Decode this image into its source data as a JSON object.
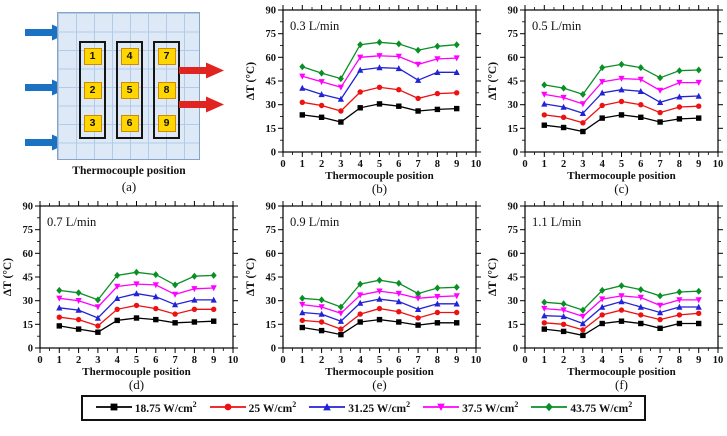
{
  "panel_a": {
    "label": "(a)",
    "caption": "Thermocouple position",
    "columns": [
      [
        "1",
        "2",
        "3"
      ],
      [
        "4",
        "5",
        "6"
      ],
      [
        "7",
        "8",
        "9"
      ]
    ],
    "inlet_arrow_color": "#1b72c2",
    "outlet_arrow_color": "#e02420",
    "grid_fill": "#dde9f7",
    "chip_fill": "#ffd600",
    "chip_border": "#cf8a00"
  },
  "legend": {
    "items": [
      {
        "label": "18.75 W/cm",
        "sup": "2",
        "color": "#000000",
        "marker": "square"
      },
      {
        "label": "25 W/cm",
        "sup": "2",
        "color": "#ee1111",
        "marker": "circle"
      },
      {
        "label": "31.25 W/cm",
        "sup": "2",
        "color": "#2222d6",
        "marker": "triangle-up"
      },
      {
        "label": "37.5 W/cm",
        "sup": "2",
        "color": "#ff00ff",
        "marker": "triangle-down"
      },
      {
        "label": "43.75 W/cm",
        "sup": "2",
        "color": "#0a8f26",
        "marker": "diamond"
      }
    ]
  },
  "chart_data": [
    {
      "type": "line",
      "panel_label": "(b)",
      "title": "0.3 L/min",
      "xlabel": "Thermocouple position",
      "ylabel": "ΔT (°C)",
      "xlim": [
        0,
        10
      ],
      "ylim": [
        0,
        90
      ],
      "xticks": [
        0,
        1,
        2,
        3,
        4,
        5,
        6,
        7,
        8,
        9,
        10
      ],
      "yticks": [
        0,
        15,
        30,
        45,
        60,
        75,
        90
      ],
      "x": [
        1,
        2,
        3,
        4,
        5,
        6,
        7,
        8,
        9
      ],
      "series": [
        {
          "name": "18.75 W/cm2",
          "values": [
            23.5,
            22,
            19,
            28,
            30.5,
            29,
            26,
            27,
            27.5
          ]
        },
        {
          "name": "25 W/cm2",
          "values": [
            31.5,
            29.5,
            26,
            38,
            41,
            39.5,
            34,
            37,
            37.5
          ]
        },
        {
          "name": "31.25 W/cm2",
          "values": [
            40.5,
            36.5,
            33.5,
            52,
            53.5,
            53,
            45.5,
            50.5,
            50.5
          ]
        },
        {
          "name": "37.5 W/cm2",
          "values": [
            48,
            44.5,
            41,
            60,
            61,
            60.5,
            55.5,
            59,
            59.5
          ]
        },
        {
          "name": "43.75 W/cm2",
          "values": [
            54,
            50,
            46.5,
            68,
            69.5,
            68.5,
            64.5,
            67,
            68
          ]
        }
      ]
    },
    {
      "type": "line",
      "panel_label": "(c)",
      "title": "0.5 L/min",
      "xlabel": "Thermocouple position",
      "ylabel": "ΔT (°C)",
      "xlim": [
        0,
        10
      ],
      "ylim": [
        0,
        90
      ],
      "xticks": [
        0,
        1,
        2,
        3,
        4,
        5,
        6,
        7,
        8,
        9,
        10
      ],
      "yticks": [
        0,
        15,
        30,
        45,
        60,
        75,
        90
      ],
      "x": [
        1,
        2,
        3,
        4,
        5,
        6,
        7,
        8,
        9
      ],
      "series": [
        {
          "name": "18.75 W/cm2",
          "values": [
            17,
            15.5,
            13,
            21.5,
            23.5,
            22,
            19,
            21,
            21.5
          ]
        },
        {
          "name": "25 W/cm2",
          "values": [
            23.5,
            22,
            18.5,
            29.5,
            32,
            30,
            25,
            28.5,
            29
          ]
        },
        {
          "name": "31.25 W/cm2",
          "values": [
            30.5,
            28.5,
            24.5,
            37.5,
            39.5,
            38.5,
            31.5,
            35,
            35.5
          ]
        },
        {
          "name": "37.5 W/cm2",
          "values": [
            36.5,
            34.5,
            30.5,
            44.5,
            46.5,
            46,
            39,
            44,
            44
          ]
        },
        {
          "name": "43.75 W/cm2",
          "values": [
            42.5,
            40.5,
            36.5,
            53.5,
            55.5,
            53.5,
            47,
            51.5,
            52
          ]
        }
      ]
    },
    {
      "type": "line",
      "panel_label": "(d)",
      "title": "0.7 L/min",
      "xlabel": "Thermocouple position",
      "ylabel": "ΔT (°C)",
      "xlim": [
        0,
        10
      ],
      "ylim": [
        0,
        90
      ],
      "xticks": [
        0,
        1,
        2,
        3,
        4,
        5,
        6,
        7,
        8,
        9,
        10
      ],
      "yticks": [
        0,
        15,
        30,
        45,
        60,
        75,
        90
      ],
      "x": [
        1,
        2,
        3,
        4,
        5,
        6,
        7,
        8,
        9
      ],
      "series": [
        {
          "name": "18.75 W/cm2",
          "values": [
            14,
            12,
            10,
            17.5,
            19,
            18,
            16,
            16.5,
            17
          ]
        },
        {
          "name": "25 W/cm2",
          "values": [
            19.5,
            18,
            14,
            24.5,
            27,
            25,
            21.5,
            24.5,
            24.5
          ]
        },
        {
          "name": "31.25 W/cm2",
          "values": [
            25.5,
            24,
            19,
            31.5,
            34.5,
            32.5,
            27.5,
            30.5,
            30.5
          ]
        },
        {
          "name": "37.5 W/cm2",
          "values": [
            31.5,
            30,
            26,
            39,
            40.5,
            40,
            34,
            37.5,
            38
          ]
        },
        {
          "name": "43.75 W/cm2",
          "values": [
            36.5,
            35,
            30.5,
            46,
            48,
            46.5,
            40,
            45.5,
            46
          ]
        }
      ]
    },
    {
      "type": "line",
      "panel_label": "(e)",
      "title": "0.9 L/min",
      "xlabel": "Thermocouple position",
      "ylabel": "ΔT (°C)",
      "xlim": [
        0,
        10
      ],
      "ylim": [
        0,
        90
      ],
      "xticks": [
        0,
        1,
        2,
        3,
        4,
        5,
        6,
        7,
        8,
        9,
        10
      ],
      "yticks": [
        0,
        15,
        30,
        45,
        60,
        75,
        90
      ],
      "x": [
        1,
        2,
        3,
        4,
        5,
        6,
        7,
        8,
        9
      ],
      "series": [
        {
          "name": "18.75 W/cm2",
          "values": [
            13,
            11,
            8.5,
            16.5,
            18,
            16.5,
            14.5,
            16,
            16
          ]
        },
        {
          "name": "25 W/cm2",
          "values": [
            17.5,
            16.5,
            12,
            21.5,
            25,
            23,
            19,
            22.5,
            22.5
          ]
        },
        {
          "name": "31.25 W/cm2",
          "values": [
            22.5,
            21.5,
            17,
            28.5,
            31,
            29.5,
            24.5,
            28,
            28
          ]
        },
        {
          "name": "37.5 W/cm2",
          "values": [
            27.5,
            26,
            22,
            33.5,
            36,
            34.5,
            31.5,
            32.5,
            33
          ]
        },
        {
          "name": "43.75 W/cm2",
          "values": [
            31.5,
            30.5,
            26,
            40.5,
            43,
            41,
            34.5,
            38,
            38.5
          ]
        }
      ]
    },
    {
      "type": "line",
      "panel_label": "(f)",
      "title": "1.1 L/min",
      "xlabel": "Thermocouple position",
      "ylabel": "ΔT (°C)",
      "xlim": [
        0,
        10
      ],
      "ylim": [
        0,
        90
      ],
      "xticks": [
        0,
        1,
        2,
        3,
        4,
        5,
        6,
        7,
        8,
        9,
        10
      ],
      "yticks": [
        0,
        15,
        30,
        45,
        60,
        75,
        90
      ],
      "x": [
        1,
        2,
        3,
        4,
        5,
        6,
        7,
        8,
        9
      ],
      "series": [
        {
          "name": "18.75 W/cm2",
          "values": [
            12,
            10.5,
            8,
            15.5,
            17,
            15.5,
            12.5,
            15.5,
            15.5
          ]
        },
        {
          "name": "25 W/cm2",
          "values": [
            16,
            15,
            11.5,
            21,
            24,
            21,
            18,
            21,
            22
          ]
        },
        {
          "name": "31.25 W/cm2",
          "values": [
            20.5,
            20,
            15.5,
            26,
            29.5,
            26,
            22.5,
            26,
            26
          ]
        },
        {
          "name": "37.5 W/cm2",
          "values": [
            25,
            24,
            20,
            31,
            33,
            32,
            27,
            30.5,
            30.5
          ]
        },
        {
          "name": "43.75 W/cm2",
          "values": [
            29,
            28,
            24,
            36.5,
            39.5,
            37,
            33,
            35.5,
            36
          ]
        }
      ]
    }
  ]
}
